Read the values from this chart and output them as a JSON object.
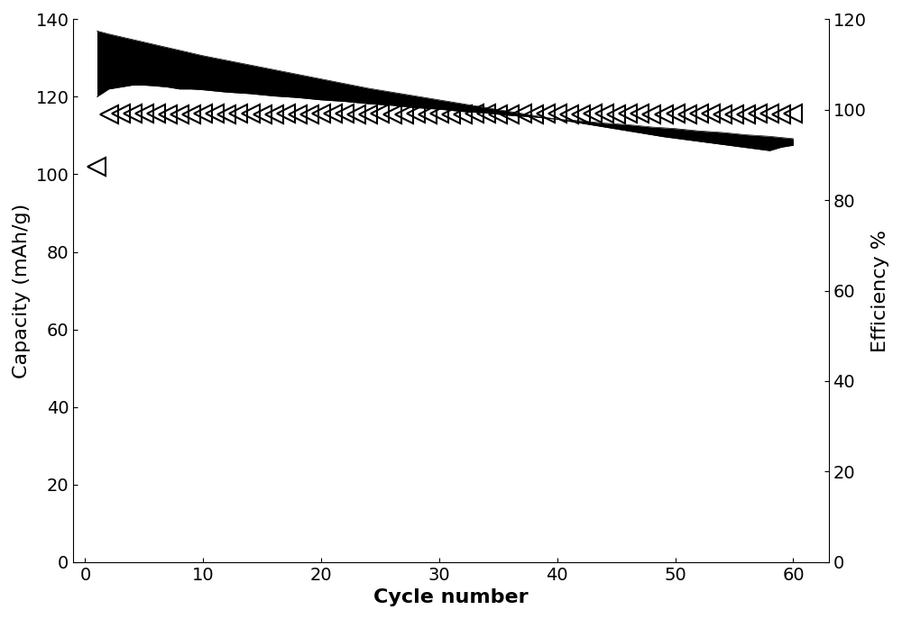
{
  "xlabel": "Cycle number",
  "ylabel_left": "Capacity (mAh/g)",
  "ylabel_right": "Efficiency %",
  "xlim": [
    -1,
    63
  ],
  "ylim_left": [
    0,
    140
  ],
  "ylim_right": [
    0,
    120
  ],
  "xticks": [
    0,
    10,
    20,
    30,
    40,
    50,
    60
  ],
  "yticks_left": [
    0,
    20,
    40,
    60,
    80,
    100,
    120,
    140
  ],
  "yticks_right": [
    0,
    20,
    40,
    60,
    80,
    100,
    120
  ],
  "discharge_cycles": [
    1,
    2,
    3,
    4,
    5,
    6,
    7,
    8,
    9,
    10,
    11,
    12,
    13,
    14,
    15,
    16,
    17,
    18,
    19,
    20,
    21,
    22,
    23,
    24,
    25,
    26,
    27,
    28,
    29,
    30,
    31,
    32,
    33,
    34,
    35,
    36,
    37,
    38,
    39,
    40,
    41,
    42,
    43,
    44,
    45,
    46,
    47,
    48,
    49,
    50,
    51,
    52,
    53,
    54,
    55,
    56,
    57,
    58,
    59,
    60
  ],
  "discharge_capacity": [
    137.0,
    136.2,
    135.5,
    134.8,
    134.1,
    133.4,
    132.7,
    132.0,
    131.3,
    130.6,
    130.0,
    129.4,
    128.8,
    128.2,
    127.6,
    127.0,
    126.4,
    125.8,
    125.2,
    124.6,
    124.0,
    123.4,
    122.8,
    122.2,
    121.7,
    121.2,
    120.7,
    120.2,
    119.7,
    119.2,
    118.7,
    118.2,
    117.7,
    117.2,
    116.7,
    116.2,
    115.7,
    115.2,
    114.7,
    114.2,
    113.7,
    113.2,
    112.7,
    112.2,
    111.7,
    111.2,
    110.7,
    110.2,
    109.7,
    109.3,
    108.9,
    108.5,
    108.1,
    107.7,
    107.3,
    106.9,
    106.5,
    106.1,
    107.0,
    107.5
  ],
  "charge_capacity": [
    120.0,
    122.0,
    122.5,
    123.0,
    123.0,
    122.8,
    122.5,
    122.0,
    122.0,
    121.8,
    121.5,
    121.2,
    121.0,
    120.8,
    120.5,
    120.2,
    120.0,
    119.8,
    119.5,
    119.2,
    119.0,
    118.8,
    118.5,
    118.2,
    118.0,
    117.8,
    117.5,
    117.2,
    117.0,
    116.8,
    116.5,
    116.2,
    116.0,
    115.8,
    115.5,
    115.2,
    115.0,
    114.8,
    114.5,
    114.2,
    114.0,
    113.8,
    113.5,
    113.2,
    113.0,
    112.8,
    112.5,
    112.2,
    112.0,
    111.8,
    111.5,
    111.2,
    111.0,
    110.8,
    110.5,
    110.2,
    110.0,
    109.8,
    109.5,
    109.2
  ],
  "efficiency_cycles": [
    1,
    2,
    3,
    4,
    5,
    6,
    7,
    8,
    9,
    10,
    11,
    12,
    13,
    14,
    15,
    16,
    17,
    18,
    19,
    20,
    21,
    22,
    23,
    24,
    25,
    26,
    27,
    28,
    29,
    30,
    31,
    32,
    33,
    34,
    35,
    36,
    37,
    38,
    39,
    40,
    41,
    42,
    43,
    44,
    45,
    46,
    47,
    48,
    49,
    50,
    51,
    52,
    53,
    54,
    55,
    56,
    57,
    58,
    59,
    60
  ],
  "efficiency_values": [
    87.5,
    99.0,
    99.1,
    99.2,
    99.2,
    99.1,
    99.0,
    98.9,
    99.0,
    99.1,
    99.1,
    99.0,
    99.1,
    99.1,
    99.0,
    99.0,
    99.1,
    99.0,
    99.0,
    99.1,
    99.1,
    99.1,
    99.0,
    99.0,
    99.1,
    99.0,
    99.0,
    99.1,
    99.0,
    99.1,
    99.0,
    99.0,
    99.1,
    99.1,
    99.0,
    99.0,
    99.1,
    99.0,
    99.1,
    99.1,
    99.0,
    99.0,
    99.1,
    99.1,
    99.0,
    99.1,
    99.1,
    99.0,
    99.0,
    99.1,
    99.0,
    99.1,
    99.1,
    99.0,
    99.0,
    99.0,
    99.1,
    99.1,
    99.0,
    99.1
  ],
  "background_color": "#ffffff",
  "fontsize_labels": 16,
  "fontsize_ticks": 14,
  "band_color": "#000000",
  "triangle_color": "#000000"
}
